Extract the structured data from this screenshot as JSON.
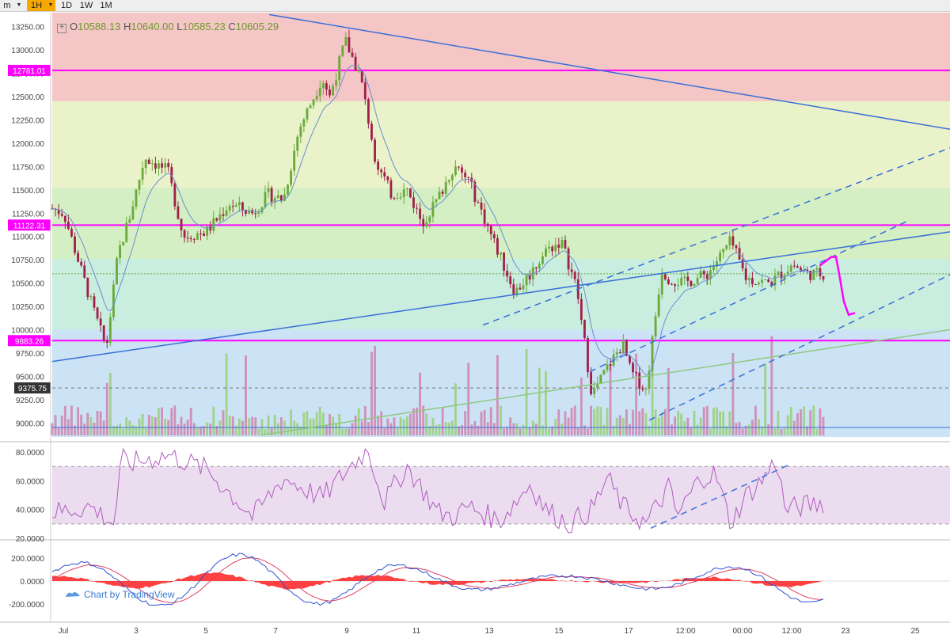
{
  "toolbar": {
    "menu_label": "m",
    "intervals": [
      {
        "label": "1H",
        "active": true
      },
      {
        "label": "1D",
        "active": false
      },
      {
        "label": "1W",
        "active": false
      },
      {
        "label": "1M",
        "active": false
      }
    ]
  },
  "ohlc": {
    "o_key": "O",
    "o_val": "10588.13",
    "h_key": "H",
    "h_val": "10640.00",
    "l_key": "L",
    "l_val": "10585.23",
    "c_key": "C",
    "c_val": "10605.29"
  },
  "watermark": "Chart by TradingView",
  "colors": {
    "up": "#6aaa3a",
    "down": "#a0204a",
    "level_line": "#ff00ff",
    "trendline": "#3a6fd8",
    "rsi_line": "#b05cc0",
    "macd_line": "#3050d0",
    "signal_line": "#e04060",
    "histogram": "#ff2020"
  },
  "chart_data": [
    {
      "type": "candlestick",
      "panel": "price",
      "symbol_interval": "1H",
      "yticks": [
        "13250.00",
        "13000.00",
        "12750.00",
        "12500.00",
        "12250.00",
        "12000.00",
        "11750.00",
        "11500.00",
        "11250.00",
        "11000.00",
        "10750.00",
        "10500.00",
        "10250.00",
        "10000.00",
        "9750.00",
        "9500.00",
        "9250.00",
        "9000.00"
      ],
      "xticks": [
        "Jul",
        "3",
        "5",
        "7",
        "9",
        "11",
        "13",
        "15",
        "17",
        "12:00",
        "00:00",
        "12:00",
        "23",
        "25"
      ],
      "ylim": [
        8850,
        13400
      ],
      "horizontal_levels": [
        {
          "label": "12781.01",
          "value": 12781.01
        },
        {
          "label": "11122.31",
          "value": 11122.31
        },
        {
          "label": "9883.26",
          "value": 9883.26
        }
      ],
      "current_price_label": "9375.75",
      "bands": [
        {
          "from": 12450,
          "to": 13400,
          "color": "#f4c6c6"
        },
        {
          "from": 11520,
          "to": 12450,
          "color": "#e9f2c9"
        },
        {
          "from": 10760,
          "to": 11520,
          "color": "#d3efc3"
        },
        {
          "from": 10000,
          "to": 10760,
          "color": "#c9eedf"
        },
        {
          "from": 8850,
          "to": 10000,
          "color": "#cbe3f5"
        }
      ],
      "series": [
        {
          "name": "",
          "type": "close",
          "anchor_x": [
            0,
            0.015,
            0.05,
            0.07,
            0.085,
            0.1,
            0.12,
            0.15,
            0.17,
            0.2,
            0.23,
            0.26,
            0.28,
            0.3,
            0.32,
            0.35,
            0.36,
            0.38,
            0.4,
            0.42,
            0.44,
            0.46,
            0.48,
            0.5,
            0.52,
            0.54,
            0.57,
            0.6,
            0.62,
            0.64,
            0.66,
            0.68,
            0.7,
            0.72,
            0.74,
            0.75,
            0.77,
            0.79,
            0.8,
            0.82,
            0.85,
            0.88,
            0.9,
            0.93,
            0.96,
            0.98,
            1
          ],
          "anchor_y": [
            11300,
            11250,
            10300,
            9800,
            10800,
            11200,
            11850,
            11700,
            11000,
            11050,
            11350,
            11250,
            11450,
            11400,
            12150,
            12700,
            12500,
            13100,
            12700,
            11800,
            11450,
            11500,
            11150,
            11400,
            11750,
            11600,
            11000,
            10400,
            10600,
            10850,
            10950,
            10450,
            9300,
            9600,
            9850,
            9550,
            9350,
            10650,
            10550,
            10500,
            10600,
            10950,
            10550,
            10500,
            10700,
            10600,
            10600
          ]
        }
      ]
    },
    {
      "type": "histogram",
      "panel": "volume",
      "series": [
        {
          "name": "",
          "values_note": ""
        }
      ]
    },
    {
      "type": "line",
      "panel": "rsi",
      "yticks": [
        "80.0000",
        "60.0000",
        "40.0000",
        "20.0000"
      ],
      "ylim": [
        20,
        85
      ],
      "band": [
        30,
        70
      ],
      "series": [
        {
          "name": "",
          "anchor_x": [
            0,
            0.05,
            0.08,
            0.09,
            0.1,
            0.15,
            0.2,
            0.26,
            0.3,
            0.35,
            0.37,
            0.39,
            0.41,
            0.43,
            0.46,
            0.5,
            0.52,
            0.54,
            0.58,
            0.62,
            0.64,
            0.67,
            0.7,
            0.72,
            0.74,
            0.77,
            0.8,
            0.81,
            0.84,
            0.86,
            0.88,
            0.9,
            0.92,
            0.94,
            0.95,
            1
          ],
          "anchor_y": [
            38,
            42,
            30,
            75,
            72,
            78,
            68,
            35,
            62,
            48,
            60,
            72,
            82,
            45,
            70,
            38,
            35,
            42,
            32,
            58,
            40,
            30,
            40,
            62,
            42,
            30,
            56,
            35,
            62,
            65,
            30,
            50,
            60,
            75,
            40,
            45
          ]
        }
      ]
    },
    {
      "type": "line",
      "panel": "macd",
      "yticks": [
        "200.0000",
        "0.0000",
        "-200.0000"
      ],
      "ylim": [
        -330,
        330
      ],
      "series": [
        {
          "name": "",
          "role": "macd"
        },
        {
          "name": "",
          "role": "signal"
        },
        {
          "name": "",
          "role": "histogram"
        }
      ]
    }
  ]
}
